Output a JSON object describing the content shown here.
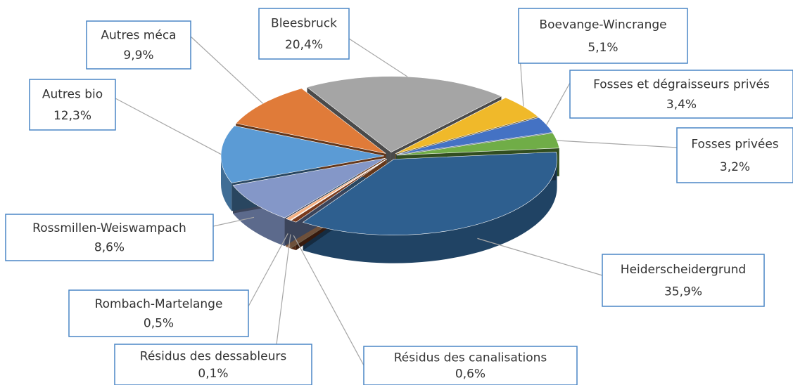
{
  "chart_data": {
    "type": "pie",
    "categories": [
      "Bleesbruck",
      "Boevange-Wincrange",
      "Fosses et dégraisseurs privés",
      "Fosses privées",
      "Heiderscheidergrund",
      "Résidus des canalisations",
      "Résidus des dessableurs",
      "Rombach-Martelange",
      "Rossmillen-Weiswampach",
      "Autres bio",
      "Autres méca"
    ],
    "values": [
      20.4,
      5.1,
      3.4,
      3.2,
      35.9,
      0.6,
      0.1,
      0.5,
      8.6,
      12.3,
      9.9
    ],
    "value_labels": [
      "20,4%",
      "5,1%",
      "3,4%",
      "3,2%",
      "35,9%",
      "0,6%",
      "0,1%",
      "0,5%",
      "8,6%",
      "12,3%",
      "9,9%"
    ],
    "colors": [
      "#a5a5a5",
      "#f0b92a",
      "#4472c4",
      "#70ad47",
      "#2e5f8f",
      "#7a3a1c",
      "#f5dcb5",
      "#f4b183",
      "#8497c8",
      "#5b9bd5",
      "#e07b39"
    ]
  }
}
